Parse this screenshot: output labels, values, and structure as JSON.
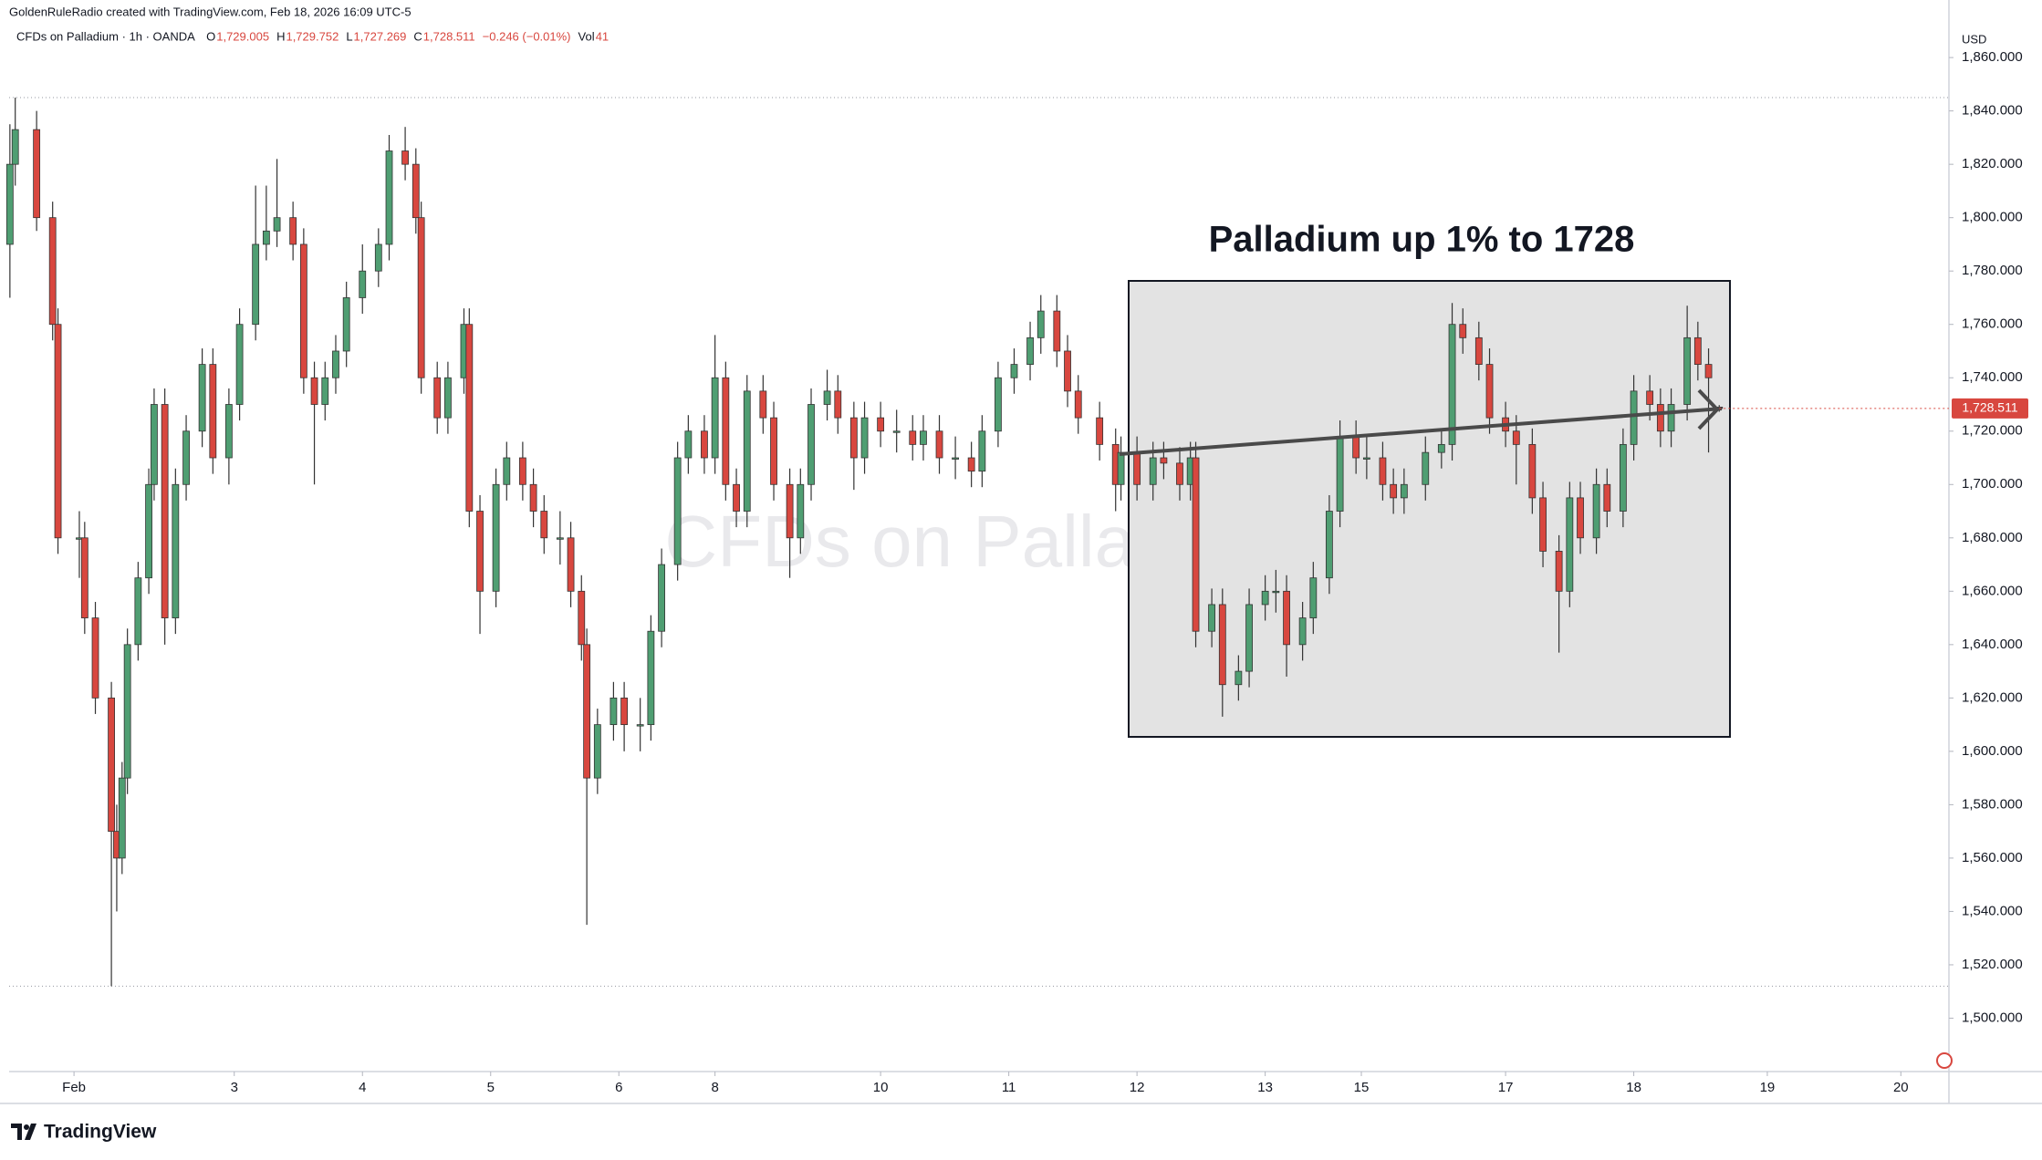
{
  "chart_data": {
    "type": "candlestick",
    "credit": "GoldenRuleRadio created with TradingView.com, Feb 18, 2026 16:09 UTC-5",
    "symbol": "CFDs on Palladium · 1h · OANDA",
    "legend": [
      "O",
      "1,729.005",
      "H",
      "1,729.752",
      "L",
      "1,727.269",
      "C",
      "1,728.511",
      "−0.246 (−0.01%)",
      "Vol",
      "41"
    ],
    "watermark": "CFDs on Palladium",
    "annotation": "Palladium up 1% to 1728",
    "currency": "USD",
    "price_label": "1,728.511",
    "brand": "TradingView",
    "up_color": "#4f9e72",
    "down_color": "#d8473f",
    "x": [
      0,
      1,
      5,
      8,
      9,
      13,
      14,
      16,
      19,
      20,
      21,
      22,
      24,
      26,
      27,
      29,
      31,
      33,
      36,
      38,
      41,
      43,
      46,
      48,
      50,
      53,
      55,
      57,
      59,
      61,
      63,
      66,
      69,
      71,
      74,
      76,
      77,
      80,
      82,
      85,
      86,
      88,
      91,
      93,
      96,
      98,
      100,
      103,
      105,
      107,
      108,
      110,
      113,
      115,
      118,
      120,
      122,
      125,
      127,
      130,
      132,
      134,
      136,
      138,
      141,
      143,
      146,
      148,
      150,
      153,
      155,
      158,
      160,
      163,
      166,
      169,
      171,
      174,
      177,
      180,
      182,
      185,
      188,
      191,
      193,
      196,
      198,
      200,
      204,
      207,
      208,
      211,
      214,
      216,
      219,
      221,
      222,
      225,
      227,
      230,
      232,
      235,
      237,
      239,
      242,
      244,
      247,
      249,
      252,
      254,
      257,
      259,
      261,
      265,
      268,
      270,
      272,
      275,
      277,
      280,
      282,
      285,
      287,
      290,
      292,
      294,
      297,
      299,
      302,
      304,
      307,
      309,
      311,
      314,
      316,
      318,
      320
    ],
    "open": [
      1790,
      1820,
      1833,
      1800,
      1760,
      1680,
      1680,
      1650,
      1620,
      1570,
      1560,
      1590,
      1640,
      1665,
      1700,
      1730,
      1650,
      1700,
      1720,
      1745,
      1710,
      1730,
      1760,
      1790,
      1795,
      1800,
      1790,
      1740,
      1730,
      1740,
      1750,
      1770,
      1780,
      1790,
      1825,
      1820,
      1800,
      1740,
      1725,
      1740,
      1760,
      1690,
      1660,
      1700,
      1710,
      1700,
      1690,
      1680,
      1680,
      1660,
      1640,
      1590,
      1610,
      1620,
      1610,
      1610,
      1645,
      1670,
      1710,
      1720,
      1710,
      1740,
      1700,
      1690,
      1735,
      1725,
      1700,
      1680,
      1700,
      1730,
      1735,
      1725,
      1710,
      1725,
      1720,
      1720,
      1715,
      1720,
      1710,
      1710,
      1705,
      1720,
      1740,
      1745,
      1755,
      1765,
      1750,
      1735,
      1725,
      1715,
      1700,
      1712,
      1700,
      1710,
      1708,
      1700,
      1710,
      1645,
      1655,
      1625,
      1630,
      1655,
      1660,
      1660,
      1640,
      1650,
      1665,
      1690,
      1718,
      1710,
      1710,
      1700,
      1695,
      1700,
      1712,
      1715,
      1760,
      1755,
      1745,
      1725,
      1720,
      1715,
      1695,
      1675,
      1660,
      1695,
      1680,
      1700,
      1690,
      1715,
      1735,
      1730,
      1720,
      1730,
      1755,
      1745,
      1729.005
    ],
    "high": [
      1835,
      1845,
      1840,
      1806,
      1766,
      1690,
      1686,
      1656,
      1626,
      1580,
      1596,
      1646,
      1671,
      1706,
      1736,
      1736,
      1706,
      1726,
      1751,
      1751,
      1736,
      1766,
      1812,
      1812,
      1822,
      1806,
      1796,
      1746,
      1746,
      1756,
      1776,
      1790,
      1796,
      1831,
      1834,
      1826,
      1806,
      1746,
      1746,
      1766,
      1766,
      1696,
      1706,
      1716,
      1716,
      1706,
      1696,
      1690,
      1686,
      1666,
      1646,
      1616,
      1626,
      1626,
      1620,
      1651,
      1676,
      1716,
      1726,
      1726,
      1756,
      1746,
      1706,
      1741,
      1741,
      1731,
      1706,
      1706,
      1736,
      1743,
      1741,
      1731,
      1731,
      1731,
      1728,
      1726,
      1726,
      1726,
      1718,
      1716,
      1726,
      1746,
      1751,
      1761,
      1771,
      1771,
      1756,
      1741,
      1731,
      1721,
      1718,
      1718,
      1716,
      1716,
      1714,
      1716,
      1716,
      1661,
      1661,
      1636,
      1661,
      1666,
      1668,
      1666,
      1656,
      1671,
      1696,
      1724,
      1724,
      1718,
      1716,
      1706,
      1706,
      1718,
      1721,
      1768,
      1766,
      1761,
      1751,
      1731,
      1726,
      1721,
      1701,
      1681,
      1701,
      1701,
      1706,
      1706,
      1721,
      1741,
      1741,
      1736,
      1736,
      1767,
      1761,
      1751,
      1729.752
    ],
    "low": [
      1770,
      1812,
      1795,
      1754,
      1674,
      1665,
      1644,
      1614,
      1512,
      1540,
      1554,
      1584,
      1634,
      1659,
      1694,
      1640,
      1644,
      1694,
      1714,
      1704,
      1700,
      1724,
      1754,
      1784,
      1789,
      1784,
      1734,
      1700,
      1724,
      1734,
      1744,
      1764,
      1774,
      1784,
      1814,
      1794,
      1734,
      1719,
      1719,
      1734,
      1684,
      1644,
      1654,
      1694,
      1694,
      1684,
      1674,
      1670,
      1654,
      1634,
      1535,
      1584,
      1604,
      1600,
      1600,
      1604,
      1639,
      1664,
      1704,
      1704,
      1704,
      1694,
      1684,
      1684,
      1719,
      1694,
      1665,
      1674,
      1694,
      1724,
      1719,
      1698,
      1704,
      1714,
      1712,
      1709,
      1709,
      1704,
      1702,
      1699,
      1699,
      1714,
      1734,
      1739,
      1749,
      1744,
      1729,
      1719,
      1709,
      1690,
      1694,
      1694,
      1694,
      1702,
      1694,
      1694,
      1639,
      1639,
      1613,
      1619,
      1624,
      1649,
      1652,
      1628,
      1634,
      1644,
      1659,
      1684,
      1704,
      1702,
      1694,
      1689,
      1689,
      1694,
      1706,
      1709,
      1749,
      1739,
      1719,
      1714,
      1700,
      1689,
      1669,
      1637,
      1654,
      1674,
      1674,
      1684,
      1684,
      1709,
      1724,
      1714,
      1714,
      1724,
      1739,
      1712,
      1727.269
    ],
    "close": [
      1820,
      1833,
      1800,
      1760,
      1680,
      1680,
      1650,
      1620,
      1570,
      1560,
      1590,
      1640,
      1665,
      1700,
      1730,
      1650,
      1700,
      1720,
      1745,
      1710,
      1730,
      1760,
      1790,
      1795,
      1800,
      1790,
      1740,
      1730,
      1740,
      1750,
      1770,
      1780,
      1790,
      1825,
      1820,
      1800,
      1740,
      1725,
      1740,
      1760,
      1690,
      1660,
      1700,
      1710,
      1700,
      1690,
      1680,
      1680,
      1660,
      1640,
      1590,
      1610,
      1620,
      1610,
      1610,
      1645,
      1670,
      1710,
      1720,
      1710,
      1740,
      1700,
      1690,
      1735,
      1725,
      1700,
      1680,
      1700,
      1730,
      1735,
      1725,
      1710,
      1725,
      1720,
      1720,
      1715,
      1720,
      1710,
      1710,
      1705,
      1720,
      1740,
      1745,
      1755,
      1765,
      1750,
      1735,
      1725,
      1715,
      1700,
      1712,
      1700,
      1710,
      1708,
      1700,
      1710,
      1645,
      1655,
      1625,
      1630,
      1655,
      1660,
      1660,
      1640,
      1650,
      1665,
      1690,
      1718,
      1710,
      1710,
      1700,
      1695,
      1700,
      1712,
      1715,
      1760,
      1755,
      1745,
      1725,
      1720,
      1715,
      1695,
      1675,
      1660,
      1695,
      1680,
      1700,
      1690,
      1715,
      1735,
      1730,
      1720,
      1730,
      1755,
      1745,
      1740,
      1728.511
    ],
    "xlim": [
      -1,
      363
    ],
    "xticks": [
      {
        "value": 12,
        "label": "Feb"
      },
      {
        "value": 42,
        "label": "3"
      },
      {
        "value": 66,
        "label": "4"
      },
      {
        "value": 90,
        "label": "5"
      },
      {
        "value": 114,
        "label": "6"
      },
      {
        "value": 132,
        "label": "8"
      },
      {
        "value": 163,
        "label": "10"
      },
      {
        "value": 187,
        "label": "11"
      },
      {
        "value": 211,
        "label": "12"
      },
      {
        "value": 235,
        "label": "13"
      },
      {
        "value": 253,
        "label": "15"
      },
      {
        "value": 280,
        "label": "17"
      },
      {
        "value": 304,
        "label": "18"
      },
      {
        "value": 329,
        "label": "19"
      },
      {
        "value": 354,
        "label": "20"
      }
    ],
    "ylim": [
      1480,
      1872
    ],
    "yticks": [
      {
        "value": 1500,
        "label": "1,500.000"
      },
      {
        "value": 1520,
        "label": "1,520.000"
      },
      {
        "value": 1540,
        "label": "1,540.000"
      },
      {
        "value": 1560,
        "label": "1,560.000"
      },
      {
        "value": 1580,
        "label": "1,580.000"
      },
      {
        "value": 1600,
        "label": "1,600.000"
      },
      {
        "value": 1620,
        "label": "1,620.000"
      },
      {
        "value": 1640,
        "label": "1,640.000"
      },
      {
        "value": 1660,
        "label": "1,660.000"
      },
      {
        "value": 1680,
        "label": "1,680.000"
      },
      {
        "value": 1700,
        "label": "1,700.000"
      },
      {
        "value": 1720,
        "label": "1,720.000"
      },
      {
        "value": 1740,
        "label": "1,740.000"
      },
      {
        "value": 1760,
        "label": "1,760.000"
      },
      {
        "value": 1780,
        "label": "1,780.000"
      },
      {
        "value": 1800,
        "label": "1,800.000"
      },
      {
        "value": 1820,
        "label": "1,820.000"
      },
      {
        "value": 1840,
        "label": "1,840.000"
      },
      {
        "value": 1860,
        "label": "1,860.000"
      }
    ],
    "grid": false
  }
}
